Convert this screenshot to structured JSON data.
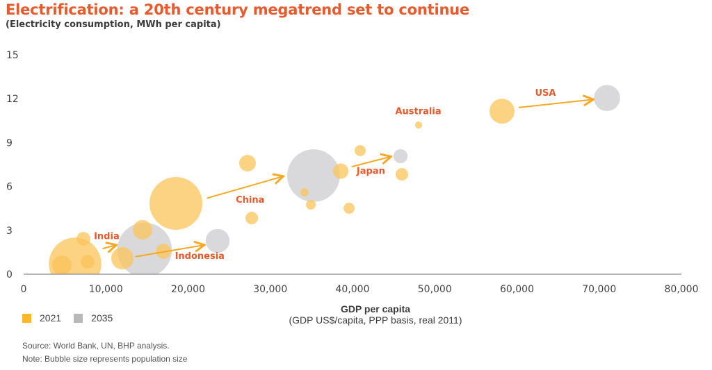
{
  "chart_data": {
    "type": "scatter",
    "subtype": "bubble",
    "title": "Electrification: a 20th century megatrend set to continue",
    "subtitle": "(Electricity consumption, MWh per capita)",
    "xlabel": "GDP per capita",
    "xlabel_sub": "(GDP US$/capita, PPP basis, real 2011)",
    "ylabel": "Electricity consumption, MWh per capita",
    "xlim": [
      0,
      80000
    ],
    "ylim": [
      0,
      15
    ],
    "x_ticks": [
      0,
      10000,
      20000,
      30000,
      40000,
      50000,
      60000,
      70000,
      80000
    ],
    "x_tick_labels": [
      "0",
      "10,000",
      "20,000",
      "30,000",
      "40,000",
      "50,000",
      "60,000",
      "70,000",
      "80,000"
    ],
    "y_ticks": [
      0,
      3,
      6,
      9,
      12,
      15
    ],
    "y_tick_labels": [
      "0",
      "3",
      "6",
      "9",
      "12",
      "15"
    ],
    "grid": false,
    "legend_position": "bottom-left",
    "series": [
      {
        "name": "2021",
        "color": "#fbc35a",
        "points": [
          {
            "label": "India",
            "x": 6260,
            "y": 0.71,
            "pop": 1390
          },
          {
            "label": "",
            "x": 4650,
            "y": 0.62,
            "pop": 190
          },
          {
            "label": "",
            "x": 7780,
            "y": 0.85,
            "pop": 95
          },
          {
            "label": "",
            "x": 7270,
            "y": 2.42,
            "pop": 95
          },
          {
            "label": "Indonesia",
            "x": 12010,
            "y": 1.09,
            "pop": 250
          },
          {
            "label": "",
            "x": 14460,
            "y": 3.04,
            "pop": 190
          },
          {
            "label": "",
            "x": 17000,
            "y": 1.57,
            "pop": 115
          },
          {
            "label": "China",
            "x": 18520,
            "y": 4.84,
            "pop": 1410
          },
          {
            "label": "",
            "x": 27230,
            "y": 7.59,
            "pop": 140
          },
          {
            "label": "",
            "x": 27740,
            "y": 3.84,
            "pop": 80
          },
          {
            "label": "",
            "x": 34160,
            "y": 5.6,
            "pop": 35
          },
          {
            "label": "",
            "x": 34930,
            "y": 4.75,
            "pop": 48
          },
          {
            "label": "Japan",
            "x": 38560,
            "y": 7.05,
            "pop": 120
          },
          {
            "label": "",
            "x": 39580,
            "y": 4.51,
            "pop": 62
          },
          {
            "label": "",
            "x": 40930,
            "y": 8.45,
            "pop": 62
          },
          {
            "label": "",
            "x": 46000,
            "y": 6.83,
            "pop": 80
          },
          {
            "label": "Australia",
            "x": 48030,
            "y": 10.2,
            "pop": 26
          },
          {
            "label": "USA",
            "x": 58180,
            "y": 11.15,
            "pop": 315
          }
        ]
      },
      {
        "name": "2035",
        "color": "#c9c9cc",
        "points": [
          {
            "label": "India",
            "x": 14710,
            "y": 1.66,
            "pop": 1510
          },
          {
            "label": "Indonesia",
            "x": 23590,
            "y": 2.28,
            "pop": 290
          },
          {
            "label": "China",
            "x": 35260,
            "y": 6.74,
            "pop": 1400
          },
          {
            "label": "Japan",
            "x": 45840,
            "y": 8.07,
            "pop": 100
          },
          {
            "label": "USA",
            "x": 70950,
            "y": 12.05,
            "pop": 345
          }
        ]
      }
    ],
    "annotations": [
      {
        "text": "India",
        "from": {
          "x": 9600,
          "y": 1.75
        },
        "to": {
          "x": 11300,
          "y": 2.0
        },
        "label_at": {
          "x": 8550,
          "y": 2.4
        }
      },
      {
        "text": "Indonesia",
        "from": {
          "x": 13600,
          "y": 1.2
        },
        "to": {
          "x": 22000,
          "y": 2.0
        },
        "label_at": {
          "x": 18400,
          "y": 1.05
        }
      },
      {
        "text": "China",
        "from": {
          "x": 22300,
          "y": 5.2
        },
        "to": {
          "x": 31600,
          "y": 6.7
        },
        "label_at": {
          "x": 25800,
          "y": 4.9
        }
      },
      {
        "text": "Japan",
        "from": {
          "x": 39900,
          "y": 7.35
        },
        "to": {
          "x": 44700,
          "y": 8.05
        },
        "label_at": {
          "x": 40500,
          "y": 6.85
        }
      },
      {
        "text": "Australia",
        "from": null,
        "to": null,
        "label_at": {
          "x": 45200,
          "y": 10.95
        }
      },
      {
        "text": "USA",
        "from": {
          "x": 60200,
          "y": 11.4
        },
        "to": {
          "x": 69300,
          "y": 11.95
        },
        "label_at": {
          "x": 62200,
          "y": 12.2
        }
      }
    ],
    "arrow_color": "#f6a823",
    "label_color": "#e8592b"
  },
  "legend": {
    "items": [
      {
        "label": "2021",
        "color": "#fbb62b"
      },
      {
        "label": "2035",
        "color": "#b8b8bb"
      }
    ]
  },
  "footer": {
    "source": "Source: World Bank, UN, BHP analysis.",
    "note": "Note: Bubble size represents population size"
  }
}
